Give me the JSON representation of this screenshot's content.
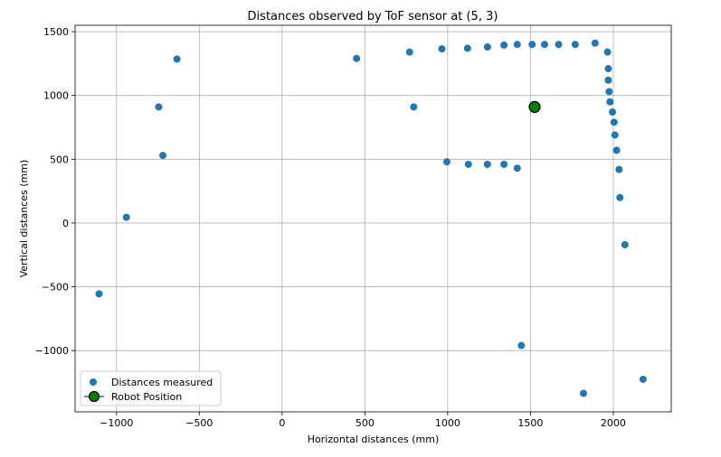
{
  "chart_data": {
    "type": "scatter",
    "title": "Distances observed by ToF sensor at (5, 3)",
    "xlabel": "Horizontal distances (mm)",
    "ylabel": "Vertical distances (mm)",
    "xlim": [
      -1250,
      2350
    ],
    "ylim": [
      -1480,
      1550
    ],
    "xticks": [
      -1000,
      -500,
      0,
      500,
      1000,
      1500,
      2000
    ],
    "yticks": [
      -1000,
      -500,
      0,
      500,
      1000,
      1500
    ],
    "xtick_labels": [
      "−1000",
      "−500",
      "0",
      "500",
      "1000",
      "1500",
      "2000"
    ],
    "ytick_labels": [
      "−1000",
      "−500",
      "0",
      "500",
      "1000",
      "1500"
    ],
    "grid": true,
    "legend_position": "lower-left",
    "series": [
      {
        "name": "Distances measured",
        "color": "#1f77b4",
        "marker": "circle",
        "points": [
          [
            -1105,
            -555
          ],
          [
            -940,
            45
          ],
          [
            -745,
            910
          ],
          [
            -720,
            530
          ],
          [
            -635,
            1285
          ],
          [
            450,
            1290
          ],
          [
            770,
            1340
          ],
          [
            795,
            910
          ],
          [
            965,
            1365
          ],
          [
            995,
            480
          ],
          [
            1120,
            1370
          ],
          [
            1125,
            460
          ],
          [
            1240,
            1380
          ],
          [
            1240,
            460
          ],
          [
            1340,
            1395
          ],
          [
            1340,
            460
          ],
          [
            1420,
            1400
          ],
          [
            1420,
            430
          ],
          [
            1445,
            -960
          ],
          [
            1510,
            1400
          ],
          [
            1585,
            1400
          ],
          [
            1670,
            1400
          ],
          [
            1770,
            1400
          ],
          [
            1890,
            1410
          ],
          [
            1965,
            1340
          ],
          [
            1970,
            1210
          ],
          [
            1970,
            1120
          ],
          [
            1975,
            1030
          ],
          [
            1980,
            950
          ],
          [
            1995,
            870
          ],
          [
            2005,
            790
          ],
          [
            2010,
            690
          ],
          [
            2020,
            570
          ],
          [
            2035,
            420
          ],
          [
            2040,
            200
          ],
          [
            2070,
            -170
          ],
          [
            1820,
            -1335
          ],
          [
            2180,
            -1225
          ]
        ]
      },
      {
        "name": "Robot Position",
        "color": "#008000",
        "edge_color": "#000000",
        "line_color": "#1f77b4",
        "marker": "large-circle",
        "points": [
          [
            1525,
            910
          ]
        ]
      }
    ]
  }
}
